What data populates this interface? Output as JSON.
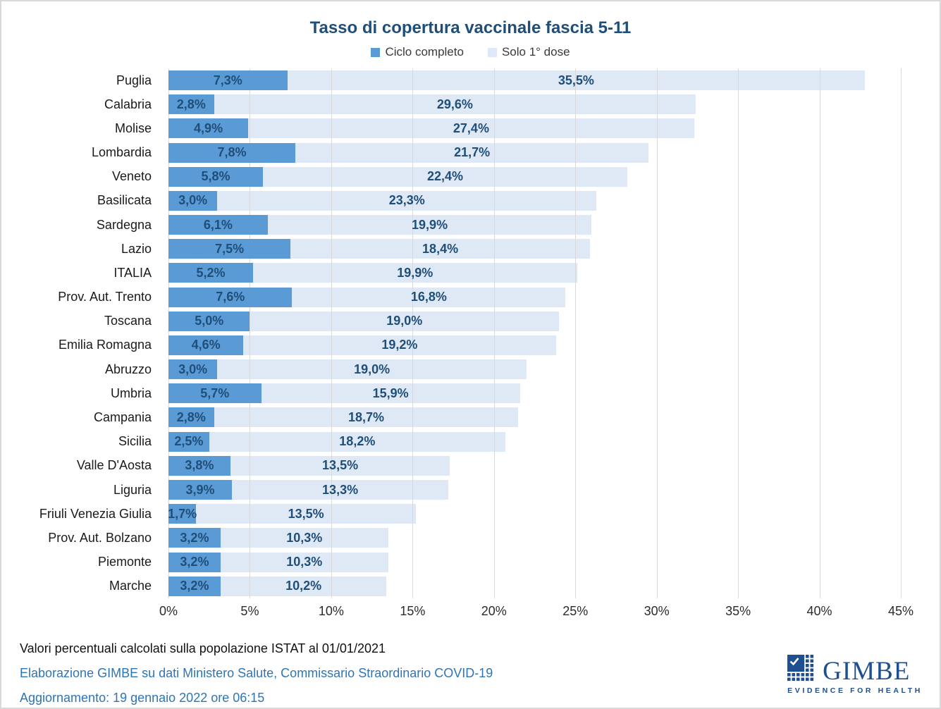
{
  "title": "Tasso di copertura vaccinale fascia 5-11",
  "legend": {
    "items": [
      {
        "label": "Ciclo completo",
        "color": "#5B9BD5"
      },
      {
        "label": "Solo 1° dose",
        "color": "#dee9f5"
      }
    ]
  },
  "chart_data": {
    "type": "bar",
    "orientation": "horizontal",
    "stacked": true,
    "title": "Tasso di copertura vaccinale fascia 5-11",
    "xlim": [
      0,
      45
    ],
    "x_ticks": [
      "0%",
      "5%",
      "10%",
      "15%",
      "20%",
      "25%",
      "30%",
      "35%",
      "40%",
      "45%"
    ],
    "grid": true,
    "legend_position": "top",
    "categories": [
      "Puglia",
      "Calabria",
      "Molise",
      "Lombardia",
      "Veneto",
      "Basilicata",
      "Sardegna",
      "Lazio",
      "ITALIA",
      "Prov. Aut. Trento",
      "Toscana",
      "Emilia Romagna",
      "Abruzzo",
      "Umbria",
      "Campania",
      "Sicilia",
      "Valle D'Aosta",
      "Liguria",
      "Friuli Venezia Giulia",
      "Prov. Aut. Bolzano",
      "Piemonte",
      "Marche"
    ],
    "series": [
      {
        "name": "Ciclo completo",
        "color": "#5B9BD5",
        "values": [
          7.3,
          2.8,
          4.9,
          7.8,
          5.8,
          3.0,
          6.1,
          7.5,
          5.2,
          7.6,
          5.0,
          4.6,
          3.0,
          5.7,
          2.8,
          2.5,
          3.8,
          3.9,
          1.7,
          3.2,
          3.2,
          3.2
        ],
        "labels": [
          "7,3%",
          "2,8%",
          "4,9%",
          "7,8%",
          "5,8%",
          "3,0%",
          "6,1%",
          "7,5%",
          "5,2%",
          "7,6%",
          "5,0%",
          "4,6%",
          "3,0%",
          "5,7%",
          "2,8%",
          "2,5%",
          "3,8%",
          "3,9%",
          "1,7%",
          "3,2%",
          "3,2%",
          "3,2%"
        ]
      },
      {
        "name": "Solo 1° dose",
        "color": "#dee9f5",
        "values": [
          35.5,
          29.6,
          27.4,
          21.7,
          22.4,
          23.3,
          19.9,
          18.4,
          19.9,
          16.8,
          19.0,
          19.2,
          19.0,
          15.9,
          18.7,
          18.2,
          13.5,
          13.3,
          13.5,
          10.3,
          10.3,
          10.2
        ],
        "labels": [
          "35,5%",
          "29,6%",
          "27,4%",
          "21,7%",
          "22,4%",
          "23,3%",
          "19,9%",
          "18,4%",
          "19,9%",
          "16,8%",
          "19,0%",
          "19,2%",
          "19,0%",
          "15,9%",
          "18,7%",
          "18,2%",
          "13,5%",
          "13,3%",
          "13,5%",
          "10,3%",
          "10,3%",
          "10,2%"
        ]
      }
    ]
  },
  "footnotes": {
    "line1": "Valori percentuali calcolati sulla popolazione ISTAT al 01/01/2021",
    "line2": "Elaborazione GIMBE su dati Ministero Salute, Commissario Straordinario COVID-19",
    "line3": "Aggiornamento: 19 gennaio 2022 ore 06:15"
  },
  "logo": {
    "word": "GIMBE",
    "tagline": "EVIDENCE FOR HEALTH",
    "color": "#1d4f91"
  },
  "colors": {
    "title": "#1F4E79",
    "value_label": "#1F4E79",
    "gridline": "#d9d9d9",
    "footnote_blue": "#2E75B6",
    "bar_complete": "#5B9BD5",
    "bar_first_dose": "#dee9f5"
  }
}
